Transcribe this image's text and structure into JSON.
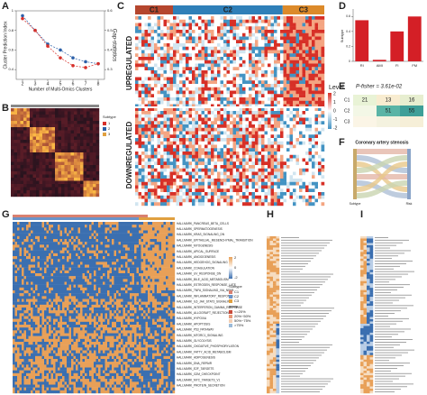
{
  "chart_data": [
    {
      "type": "line",
      "panel": "A",
      "xlabel": "Number of Multi-Omics Clusters",
      "ylabel": "Cluster Prediction Index",
      "y2label": "Gap-statistics",
      "x": [
        2,
        3,
        4,
        5,
        6,
        7,
        8
      ],
      "xlim": [
        1.5,
        8.5
      ],
      "xticks": [
        2,
        3,
        4,
        5,
        6,
        7,
        8
      ],
      "ylim": [
        0.3,
        1.0
      ],
      "yticks": [
        0.4,
        0.6,
        0.8,
        1.0
      ],
      "y2lim": [
        0.25,
        0.6
      ],
      "y2ticks": [
        0.3,
        0.4,
        0.5,
        0.6
      ],
      "series": [
        {
          "name": "Cluster Prediction Index",
          "color": "#2b5fa8",
          "values": [
            0.95,
            0.8,
            0.66,
            0.6,
            0.52,
            0.48,
            0.46
          ]
        },
        {
          "name": "Gap-statistics",
          "color": "#d7302a",
          "axis": "y2",
          "values": [
            0.56,
            0.5,
            0.42,
            0.36,
            0.32,
            0.31,
            0.33
          ]
        }
      ]
    },
    {
      "type": "bar",
      "panel": "D",
      "ylabel": "Subtype",
      "categories": [
        "RI",
        "AMI",
        "FI",
        "FM"
      ],
      "values": [
        0.55,
        0.02,
        0.4,
        0.6
      ],
      "color": "#d41f26",
      "ylim": [
        0,
        0.7
      ],
      "yticks": [
        0,
        0.2,
        0.4,
        0.6
      ]
    }
  ],
  "panels": {
    "B": {
      "label": "B",
      "legend_title": "Subtype",
      "legend": [
        "1",
        "2",
        "3"
      ]
    },
    "C": {
      "label": "C",
      "groups": [
        "C1",
        "C2",
        "C3"
      ],
      "rows": [
        "UPREGULATED",
        "DOWNREGULATED"
      ],
      "legend_title": "Level",
      "legend_ticks": [
        "2",
        "1",
        "0",
        "-1",
        "-2"
      ]
    },
    "E": {
      "label": "E",
      "title": "P-fisher = 3.61e-02",
      "rows": [
        "C1",
        "C2",
        "C3"
      ],
      "cells": [
        [
          21,
          13,
          16
        ],
        [
          null,
          51,
          55
        ],
        [
          null,
          null,
          null
        ]
      ]
    },
    "F": {
      "label": "F",
      "title": "Coronary artery stenosis",
      "left": "Subtype",
      "right": "Risk"
    },
    "G": {
      "label": "G",
      "rows": [
        "HALLMARK_PANCREAS_BETA_CELLS",
        "HALLMARK_SPERMATOGENESIS",
        "HALLMARK_KRAS_SIGNALING_DN",
        "HALLMARK_EPITHELIAL_MESENCHYMAL_TRANSITION",
        "HALLMARK_MYOGENESIS",
        "HALLMARK_APICAL_SURFACE",
        "HALLMARK_ANGIOGENESIS",
        "HALLMARK_HEDGEHOG_SIGNALING",
        "HALLMARK_COAGULATION",
        "HALLMARK_UV_RESPONSE_DN",
        "HALLMARK_BILE_ACID_METABOLISM",
        "HALLMARK_ESTROGEN_RESPONSE_LATE",
        "HALLMARK_TNFA_SIGNALING_VIA_NFKB",
        "HALLMARK_INFLAMMATORY_RESPONSE",
        "HALLMARK_IL6_JAK_STAT3_SIGNALING",
        "HALLMARK_INTERFERON_GAMMA_RESPONSE",
        "HALLMARK_ALLOGRAFT_REJECTION",
        "HALLMARK_HYPOXIA",
        "HALLMARK_APOPTOSIS",
        "HALLMARK_P53_PATHWAY",
        "HALLMARK_MTORC1_SIGNALING",
        "HALLMARK_GLYCOLYSIS",
        "HALLMARK_OXIDATIVE_PHOSPHORYLATION",
        "HALLMARK_FATTY_ACID_METABOLISM",
        "HALLMARK_ADIPOGENESIS",
        "HALLMARK_DNA_REPAIR",
        "HALLMARK_E2F_TARGETS",
        "HALLMARK_G2M_CHECKPOINT",
        "HALLMARK_MYC_TARGETS_V1",
        "HALLMARK_PROTEIN_SECRETION"
      ],
      "legend_ticks": [
        "2",
        "0",
        "-2"
      ],
      "subtype_title": "Subtype",
      "subtypes": [
        "C1",
        "C2",
        "C3"
      ],
      "group_title": "group",
      "groups": [
        "<=20%",
        "20%~50%",
        "50%~75%",
        ">75%"
      ]
    },
    "H": {
      "label": "H"
    },
    "I": {
      "label": "I"
    }
  }
}
